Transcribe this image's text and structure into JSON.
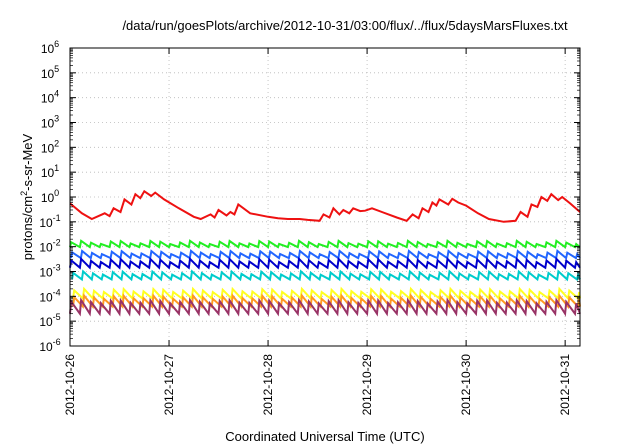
{
  "chart_data": {
    "type": "line",
    "title": "/data/run/goesPlots/archive/2012-10-31/03:00/flux/../flux/5daysMarsFluxes.txt",
    "xlabel": "Coordinated Universal Time (UTC)",
    "ylabel": {
      "prefix": "protons/cm",
      "sup": "2",
      "suffix": "-s-sr-MeV"
    },
    "y_scale": "log",
    "ylim": [
      1e-06,
      1000000.0
    ],
    "y_ticks": [
      {
        "base": "10",
        "exp": "-6",
        "value": -6
      },
      {
        "base": "10",
        "exp": "-5",
        "value": -5
      },
      {
        "base": "10",
        "exp": "-4",
        "value": -4
      },
      {
        "base": "10",
        "exp": "-3",
        "value": -3
      },
      {
        "base": "10",
        "exp": "-2",
        "value": -2
      },
      {
        "base": "10",
        "exp": "-1",
        "value": -1
      },
      {
        "base": "10",
        "exp": "0",
        "value": 0
      },
      {
        "base": "10",
        "exp": "1",
        "value": 1
      },
      {
        "base": "10",
        "exp": "2",
        "value": 2
      },
      {
        "base": "10",
        "exp": "3",
        "value": 3
      },
      {
        "base": "10",
        "exp": "4",
        "value": 4
      },
      {
        "base": "10",
        "exp": "5",
        "value": 5
      },
      {
        "base": "10",
        "exp": "6",
        "value": 6
      }
    ],
    "x_ticks": [
      {
        "label": "2012-10-26",
        "day": 0
      },
      {
        "label": "2012-10-27",
        "day": 1
      },
      {
        "label": "2012-10-28",
        "day": 2
      },
      {
        "label": "2012-10-29",
        "day": 3
      },
      {
        "label": "2012-10-30",
        "day": 4
      },
      {
        "label": "2012-10-31",
        "day": 5
      }
    ],
    "xlim_days": [
      0,
      5.15
    ],
    "grid": true,
    "legend": "none",
    "series": [
      {
        "color": "#ee1111",
        "points": [
          [
            0.0,
            0.55
          ],
          [
            0.12,
            0.22
          ],
          [
            0.22,
            0.13
          ],
          [
            0.35,
            0.22
          ],
          [
            0.4,
            0.17
          ],
          [
            0.44,
            0.35
          ],
          [
            0.51,
            0.25
          ],
          [
            0.55,
            0.8
          ],
          [
            0.62,
            0.5
          ],
          [
            0.66,
            1.3
          ],
          [
            0.71,
            0.9
          ],
          [
            0.75,
            1.7
          ],
          [
            0.82,
            1.1
          ],
          [
            0.86,
            1.5
          ],
          [
            0.95,
            0.8
          ],
          [
            1.1,
            0.35
          ],
          [
            1.25,
            0.16
          ],
          [
            1.32,
            0.13
          ],
          [
            1.42,
            0.2
          ],
          [
            1.46,
            0.15
          ],
          [
            1.5,
            0.3
          ],
          [
            1.58,
            0.18
          ],
          [
            1.62,
            0.25
          ],
          [
            1.66,
            0.2
          ],
          [
            1.7,
            0.5
          ],
          [
            1.82,
            0.22
          ],
          [
            2.0,
            0.16
          ],
          [
            2.1,
            0.14
          ],
          [
            2.2,
            0.13
          ],
          [
            2.32,
            0.13
          ],
          [
            2.4,
            0.12
          ],
          [
            2.52,
            0.11
          ],
          [
            2.56,
            0.2
          ],
          [
            2.62,
            0.15
          ],
          [
            2.66,
            0.35
          ],
          [
            2.72,
            0.2
          ],
          [
            2.76,
            0.3
          ],
          [
            2.82,
            0.22
          ],
          [
            2.86,
            0.35
          ],
          [
            2.93,
            0.27
          ],
          [
            2.98,
            0.28
          ],
          [
            3.05,
            0.35
          ],
          [
            3.15,
            0.25
          ],
          [
            3.3,
            0.15
          ],
          [
            3.4,
            0.11
          ],
          [
            3.46,
            0.2
          ],
          [
            3.52,
            0.14
          ],
          [
            3.56,
            0.35
          ],
          [
            3.62,
            0.25
          ],
          [
            3.66,
            0.6
          ],
          [
            3.7,
            0.45
          ],
          [
            3.73,
            0.8
          ],
          [
            3.82,
            0.5
          ],
          [
            3.86,
            0.85
          ],
          [
            3.92,
            0.6
          ],
          [
            4.0,
            0.45
          ],
          [
            4.12,
            0.22
          ],
          [
            4.23,
            0.13
          ],
          [
            4.38,
            0.1
          ],
          [
            4.5,
            0.11
          ],
          [
            4.55,
            0.25
          ],
          [
            4.62,
            0.16
          ],
          [
            4.66,
            0.5
          ],
          [
            4.72,
            0.4
          ],
          [
            4.76,
            1.0
          ],
          [
            4.82,
            0.7
          ],
          [
            4.86,
            1.3
          ],
          [
            4.93,
            0.75
          ],
          [
            4.97,
            1.0
          ],
          [
            5.05,
            0.55
          ],
          [
            5.15,
            0.25
          ]
        ]
      },
      {
        "color": "#22ee22",
        "base": 0.012,
        "amp": 0.25,
        "period": 0.1,
        "peak_offset": 0.0
      },
      {
        "color": "#2266ff",
        "base": 0.0045,
        "amp": 0.3,
        "period": 0.1,
        "peak_offset": 0.01
      },
      {
        "color": "#00cccc",
        "base": 0.00065,
        "amp": 0.35,
        "period": 0.1,
        "peak_offset": 0.02
      },
      {
        "color": "#0000cc",
        "base": 0.002,
        "amp": 0.4,
        "period": 0.1,
        "peak_offset": 0.0
      },
      {
        "color": "#ffff22",
        "base": 0.00012,
        "amp": 0.45,
        "period": 0.1,
        "peak_offset": 0.03
      },
      {
        "color": "#ff9922",
        "base": 6e-05,
        "amp": 0.55,
        "period": 0.1,
        "peak_offset": 0.03
      },
      {
        "color": "#993366",
        "base": 3.5e-05,
        "amp": 0.75,
        "period": 0.1,
        "peak_offset": 0.0
      }
    ]
  }
}
